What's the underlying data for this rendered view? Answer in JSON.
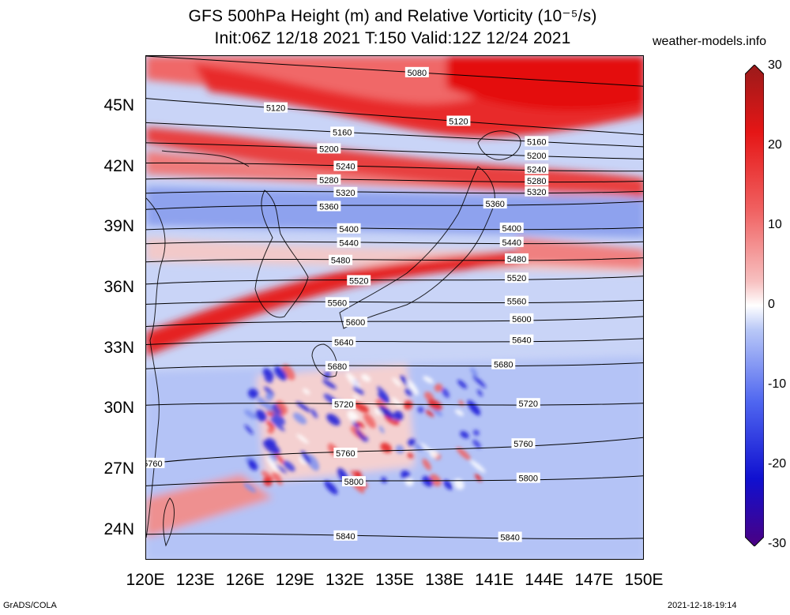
{
  "title": {
    "line1": "GFS 500hPa Height (m) and Relative Vorticity (10⁻⁵/s)",
    "line2": "Init:06Z 12/18 2021 T:150 Valid:12Z 12/24 2021"
  },
  "site": "weather-models.info",
  "footer": {
    "left": "GrADS/COLA",
    "right": "2021-12-18-19:14"
  },
  "map": {
    "extent": {
      "lon_min": 120,
      "lon_max": 150,
      "lat_min": 22.5,
      "lat_max": 47.5
    },
    "lat_ticks": [
      {
        "label": "45N",
        "lat": 45
      },
      {
        "label": "42N",
        "lat": 42
      },
      {
        "label": "39N",
        "lat": 39
      },
      {
        "label": "36N",
        "lat": 36
      },
      {
        "label": "33N",
        "lat": 33
      },
      {
        "label": "30N",
        "lat": 30
      },
      {
        "label": "27N",
        "lat": 27
      },
      {
        "label": "24N",
        "lat": 24
      }
    ],
    "lon_ticks": [
      {
        "label": "120E",
        "lon": 120
      },
      {
        "label": "123E",
        "lon": 123
      },
      {
        "label": "126E",
        "lon": 126
      },
      {
        "label": "129E",
        "lon": 129
      },
      {
        "label": "132E",
        "lon": 132
      },
      {
        "label": "135E",
        "lon": 135
      },
      {
        "label": "138E",
        "lon": 138
      },
      {
        "label": "141E",
        "lon": 141
      },
      {
        "label": "144E",
        "lon": 144
      },
      {
        "label": "147E",
        "lon": 147
      },
      {
        "label": "150E",
        "lon": 150
      }
    ],
    "height_contours": [
      {
        "value": "5080",
        "lat_w": 47.5,
        "lat_e": 46.0,
        "label_lon": 136.3
      },
      {
        "value": "5120",
        "lat_w": 45.4,
        "lat_e": 43.6,
        "label_lon": 127.8
      },
      {
        "value": "5120",
        "lat_w": 45.4,
        "lat_e": 43.6,
        "label_lon": 138.8
      },
      {
        "value": "5160",
        "lat_w": 44.2,
        "lat_e": 43.0,
        "label_lon": 131.8
      },
      {
        "value": "5160",
        "lat_w": 44.2,
        "lat_e": 43.0,
        "label_lon": 143.5
      },
      {
        "value": "5200",
        "lat_w": 43.2,
        "lat_e": 42.4,
        "label_lon": 131.0
      },
      {
        "value": "5200",
        "lat_w": 43.2,
        "lat_e": 42.4,
        "label_lon": 143.5
      },
      {
        "value": "5240",
        "lat_w": 42.2,
        "lat_e": 41.8,
        "label_lon": 132.0
      },
      {
        "value": "5240",
        "lat_w": 42.2,
        "lat_e": 41.8,
        "label_lon": 143.5
      },
      {
        "value": "5280",
        "lat_w": 41.4,
        "lat_e": 41.3,
        "label_lon": 131.0
      },
      {
        "value": "5280",
        "lat_w": 41.4,
        "lat_e": 41.3,
        "label_lon": 143.5
      },
      {
        "value": "5320",
        "lat_w": 40.7,
        "lat_e": 40.8,
        "label_lon": 132.0
      },
      {
        "value": "5320",
        "lat_w": 40.7,
        "lat_e": 40.8,
        "label_lon": 143.5
      },
      {
        "value": "5360",
        "lat_w": 39.9,
        "lat_e": 40.3,
        "label_lon": 131.0
      },
      {
        "value": "5360",
        "lat_w": 39.9,
        "lat_e": 40.3,
        "label_lon": 141.0
      },
      {
        "value": "5400",
        "lat_w": 38.9,
        "lat_e": 39.0,
        "label_lon": 132.2
      },
      {
        "value": "5400",
        "lat_w": 38.9,
        "lat_e": 39.0,
        "label_lon": 142.0
      },
      {
        "value": "5440",
        "lat_w": 38.2,
        "lat_e": 38.3,
        "label_lon": 132.2
      },
      {
        "value": "5440",
        "lat_w": 38.2,
        "lat_e": 38.3,
        "label_lon": 142.0
      },
      {
        "value": "5480",
        "lat_w": 37.3,
        "lat_e": 37.5,
        "label_lon": 131.7
      },
      {
        "value": "5480",
        "lat_w": 37.3,
        "lat_e": 37.5,
        "label_lon": 142.3
      },
      {
        "value": "5520",
        "lat_w": 36.2,
        "lat_e": 36.6,
        "label_lon": 132.8
      },
      {
        "value": "5520",
        "lat_w": 36.2,
        "lat_e": 36.6,
        "label_lon": 142.3
      },
      {
        "value": "5560",
        "lat_w": 35.2,
        "lat_e": 35.4,
        "label_lon": 131.5
      },
      {
        "value": "5560",
        "lat_w": 35.2,
        "lat_e": 35.4,
        "label_lon": 142.3
      },
      {
        "value": "5600",
        "lat_w": 34.1,
        "lat_e": 34.6,
        "label_lon": 132.6
      },
      {
        "value": "5600",
        "lat_w": 34.1,
        "lat_e": 34.6,
        "label_lon": 142.6
      },
      {
        "value": "5640",
        "lat_w": 33.2,
        "lat_e": 33.5,
        "label_lon": 131.9
      },
      {
        "value": "5640",
        "lat_w": 33.2,
        "lat_e": 33.5,
        "label_lon": 142.6
      },
      {
        "value": "5680",
        "lat_w": 32.0,
        "lat_e": 32.3,
        "label_lon": 131.5
      },
      {
        "value": "5680",
        "lat_w": 32.0,
        "lat_e": 32.3,
        "label_lon": 141.5
      },
      {
        "value": "5720",
        "lat_w": 30.2,
        "lat_e": 30.3,
        "label_lon": 131.9
      },
      {
        "value": "5720",
        "lat_w": 30.2,
        "lat_e": 30.3,
        "label_lon": 143.0
      },
      {
        "value": "5760",
        "lat_w": 27.3,
        "lat_e": 28.6,
        "label_lon": 120.4
      },
      {
        "value": "5760",
        "lat_w": 27.3,
        "lat_e": 28.6,
        "label_lon": 132.0
      },
      {
        "value": "5760",
        "lat_w": 27.3,
        "lat_e": 28.6,
        "label_lon": 142.7
      },
      {
        "value": "5800",
        "lat_w": 26.2,
        "lat_e": 26.7,
        "label_lon": 132.5
      },
      {
        "value": "5800",
        "lat_w": 26.2,
        "lat_e": 26.7,
        "label_lon": 143.0
      },
      {
        "value": "5840",
        "lat_w": 23.8,
        "lat_e": 23.6,
        "label_lon": 132.0
      },
      {
        "value": "5840",
        "lat_w": 23.8,
        "lat_e": 23.6,
        "label_lon": 141.9
      }
    ]
  },
  "colorbar": {
    "ticks": [
      "30",
      "20",
      "10",
      "0",
      "-10",
      "-20",
      "-30"
    ],
    "range": [
      -30,
      30
    ],
    "colors": [
      "#4b0082",
      "#1010d0",
      "#4f66f0",
      "#b9c8f7",
      "#ffffff",
      "#f7c0c0",
      "#f06060",
      "#e51616",
      "#9a1a1a"
    ]
  }
}
